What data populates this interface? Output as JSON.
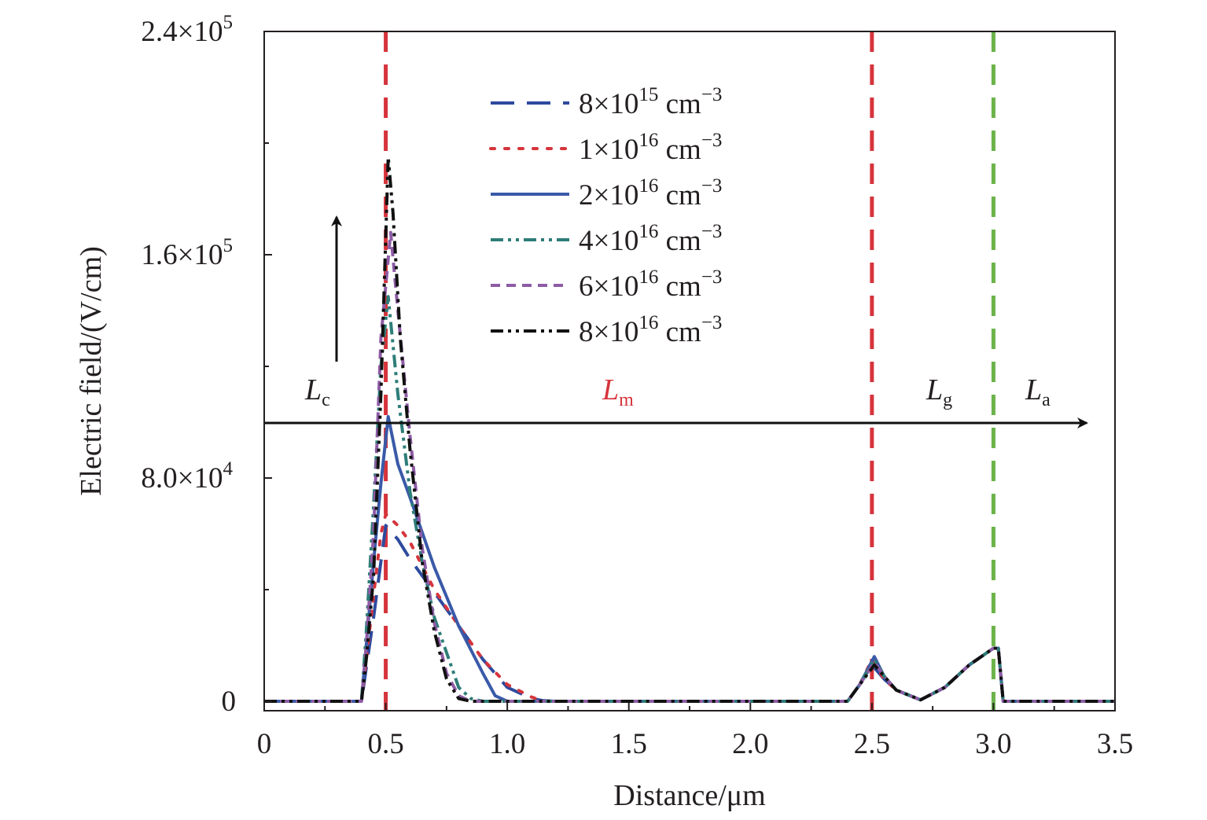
{
  "chart_data": {
    "type": "line",
    "xlabel": "Distance/μm",
    "ylabel": "Electric field/(V/cm)",
    "xlim": [
      0,
      3.5
    ],
    "ylim": [
      -3000,
      240000
    ],
    "x_ticks": [
      "0",
      "0.5",
      "1.0",
      "1.5",
      "2.0",
      "2.5",
      "3.0",
      "3.5"
    ],
    "y_ticks": [
      {
        "value": 240000,
        "mant": "2.4×10",
        "exp": "5"
      },
      {
        "value": 160000,
        "mant": "1.6×10",
        "exp": "5"
      },
      {
        "value": 80000,
        "mant": "8.0×10",
        "exp": "4"
      },
      {
        "value": 0,
        "mant": "0",
        "exp": ""
      }
    ],
    "grid": false,
    "legend_position": "top-center",
    "series": [
      {
        "name": "8×1015 cm−3",
        "mant": "8×10",
        "exp": "15",
        "unit": "cm",
        "unit_exp": "−3",
        "color": "#2e4a9e",
        "dash": "dashed",
        "x": [
          0,
          0.4,
          0.42,
          0.45,
          0.48,
          0.5,
          0.55,
          0.6,
          0.7,
          0.8,
          0.9,
          1.0,
          1.1,
          1.15,
          1.2,
          2.4,
          2.45,
          2.5,
          2.55,
          2.6,
          2.7,
          2.8,
          2.9,
          3.0,
          3.02,
          3.04,
          3.1,
          3.5
        ],
        "y": [
          0,
          0,
          12000,
          30000,
          50000,
          63000,
          58000,
          51000,
          39000,
          27000,
          15000,
          5000,
          1000,
          200,
          0,
          0,
          6000,
          13000,
          8000,
          4000,
          500,
          5000,
          13000,
          19000,
          19000,
          0,
          0,
          0
        ]
      },
      {
        "name": "1×1016 cm−3",
        "mant": "1×10",
        "exp": "16",
        "unit": "cm",
        "unit_exp": "−3",
        "color": "#d6343c",
        "dash": "dotted",
        "x": [
          0,
          0.4,
          0.42,
          0.45,
          0.48,
          0.5,
          0.55,
          0.6,
          0.7,
          0.8,
          0.9,
          1.0,
          1.1,
          1.15,
          2.4,
          2.45,
          2.5,
          2.55,
          2.6,
          2.7,
          2.8,
          2.9,
          3.0,
          3.02,
          3.04,
          3.1,
          3.5
        ],
        "y": [
          0,
          0,
          15000,
          38000,
          60000,
          67000,
          63000,
          57000,
          40000,
          27000,
          15000,
          6000,
          1500,
          0,
          0,
          6000,
          15000,
          8000,
          4000,
          500,
          5000,
          13000,
          19000,
          19000,
          0,
          0,
          0
        ]
      },
      {
        "name": "2×1016 cm−3",
        "mant": "2×10",
        "exp": "16",
        "unit": "cm",
        "unit_exp": "−3",
        "color": "#3a5aa8",
        "dash": "solid",
        "x": [
          0,
          0.4,
          0.42,
          0.45,
          0.48,
          0.51,
          0.55,
          0.6,
          0.7,
          0.8,
          0.9,
          0.95,
          1.0,
          2.4,
          2.45,
          2.51,
          2.55,
          2.6,
          2.7,
          2.8,
          2.9,
          3.0,
          3.02,
          3.04,
          3.1,
          3.5
        ],
        "y": [
          0,
          0,
          20000,
          50000,
          78000,
          102000,
          85000,
          73000,
          48000,
          27000,
          10000,
          2000,
          0,
          0,
          6000,
          16000,
          9000,
          4000,
          500,
          5000,
          13000,
          19000,
          19000,
          0,
          0,
          0
        ]
      },
      {
        "name": "4×1016 cm−3",
        "mant": "4×10",
        "exp": "16",
        "unit": "cm",
        "unit_exp": "−3",
        "color": "#2e7d78",
        "dash": "dashdotdot",
        "x": [
          0,
          0.4,
          0.42,
          0.45,
          0.48,
          0.51,
          0.55,
          0.6,
          0.65,
          0.7,
          0.8,
          0.85,
          0.9,
          2.4,
          2.45,
          2.51,
          2.55,
          2.6,
          2.7,
          2.8,
          2.9,
          3.0,
          3.02,
          3.04,
          3.1,
          3.5
        ],
        "y": [
          0,
          0,
          25000,
          70000,
          120000,
          145000,
          110000,
          75000,
          50000,
          30000,
          5000,
          1000,
          0,
          0,
          6000,
          15000,
          9000,
          4000,
          500,
          5000,
          13000,
          19000,
          19000,
          0,
          0,
          0
        ]
      },
      {
        "name": "6×1016 cm−3",
        "mant": "6×10",
        "exp": "16",
        "unit": "cm",
        "unit_exp": "−3",
        "color": "#8e5ca6",
        "dash": "shortdash",
        "x": [
          0,
          0.4,
          0.42,
          0.45,
          0.48,
          0.52,
          0.55,
          0.6,
          0.65,
          0.7,
          0.75,
          0.8,
          0.85,
          2.4,
          2.45,
          2.51,
          2.55,
          2.6,
          2.7,
          2.8,
          2.9,
          3.0,
          3.02,
          3.04,
          3.1,
          3.5
        ],
        "y": [
          0,
          0,
          20000,
          60000,
          130000,
          168000,
          140000,
          95000,
          55000,
          28000,
          10000,
          2000,
          0,
          0,
          6000,
          14000,
          9000,
          4000,
          500,
          5000,
          13000,
          19000,
          19000,
          0,
          0,
          0
        ]
      },
      {
        "name": "8×1016 cm−3",
        "mant": "8×10",
        "exp": "16",
        "unit": "cm",
        "unit_exp": "−3",
        "color": "#111111",
        "dash": "dashdotdot",
        "x": [
          0,
          0.4,
          0.42,
          0.45,
          0.48,
          0.51,
          0.53,
          0.56,
          0.6,
          0.65,
          0.7,
          0.75,
          0.8,
          0.85,
          2.4,
          2.45,
          2.51,
          2.55,
          2.6,
          2.7,
          2.8,
          2.9,
          3.0,
          3.02,
          3.04,
          3.1,
          3.5
        ],
        "y": [
          0,
          0,
          15000,
          45000,
          110000,
          195000,
          175000,
          130000,
          90000,
          50000,
          25000,
          8000,
          1000,
          0,
          0,
          6000,
          13000,
          9000,
          4000,
          500,
          5000,
          13000,
          19000,
          19000,
          0,
          0,
          0
        ]
      }
    ],
    "annotations": {
      "boundary_lines": [
        {
          "x": 0.5,
          "color": "#d6343c"
        },
        {
          "x": 2.5,
          "color": "#d6343c"
        },
        {
          "x": 3.0,
          "color": "#6bb34a"
        }
      ],
      "region_labels": [
        {
          "main": "L",
          "sub": "c",
          "color": "#231f20"
        },
        {
          "main": "L",
          "sub": "m",
          "color": "#d6343c"
        },
        {
          "main": "L",
          "sub": "g",
          "color": "#231f20"
        },
        {
          "main": "L",
          "sub": "a",
          "color": "#231f20"
        }
      ]
    }
  }
}
